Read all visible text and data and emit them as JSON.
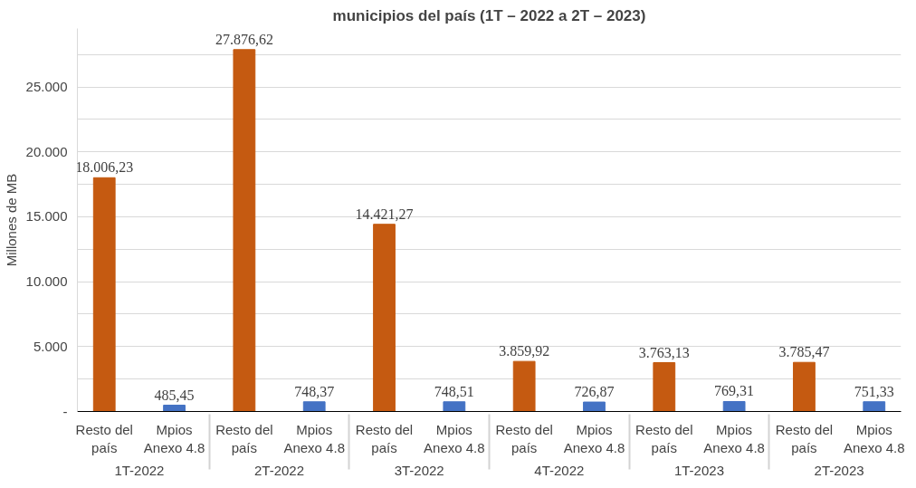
{
  "chart_data": {
    "type": "bar",
    "title": "municipios del país (1T – 2022 a 2T – 2023)",
    "ylabel": "Millones de MB",
    "categories": [
      "Resto del país",
      "Mpios Anexo 4.8",
      "Resto del país",
      "Mpios Anexo 4.8",
      "Resto del país",
      "Mpios Anexo 4.8",
      "Resto del país",
      "Mpios Anexo 4.8",
      "Resto del país",
      "Mpios Anexo 4.8",
      "Resto del país",
      "Mpios Anexo 4.8"
    ],
    "values": [
      18006.23,
      485.45,
      27876.62,
      748.37,
      14421.27,
      748.51,
      3859.92,
      726.87,
      3763.13,
      769.31,
      3785.47,
      751.33
    ],
    "value_labels": [
      "18.006,23",
      "485,45",
      "27.876,62",
      "748,37",
      "14.421,27",
      "748,51",
      "3.859,92",
      "726,87",
      "3.763,13",
      "769,31",
      "3.785,47",
      "751,33"
    ],
    "colors": [
      "#c55a11",
      "#4472c4",
      "#c55a11",
      "#4472c4",
      "#c55a11",
      "#4472c4",
      "#c55a11",
      "#4472c4",
      "#c55a11",
      "#4472c4",
      "#c55a11",
      "#4472c4"
    ],
    "annotations": [
      "1T-2022",
      "2T-2022",
      "3T-2022",
      "4T-2022",
      "1T-2023",
      "2T-2023"
    ],
    "ylim": [
      0,
      29500
    ],
    "yticks": [
      {
        "value": 0,
        "label": "-"
      },
      {
        "value": 2500,
        "label": null
      },
      {
        "value": 5000,
        "label": "5.000"
      },
      {
        "value": 7500,
        "label": null
      },
      {
        "value": 10000,
        "label": "10.000"
      },
      {
        "value": 12500,
        "label": null
      },
      {
        "value": 15000,
        "label": "15.000"
      },
      {
        "value": 17500,
        "label": null
      },
      {
        "value": 20000,
        "label": "20.000"
      },
      {
        "value": 22500,
        "label": null
      },
      {
        "value": 25000,
        "label": "25.000"
      },
      {
        "value": 27500,
        "label": null
      }
    ],
    "grid": "y"
  }
}
